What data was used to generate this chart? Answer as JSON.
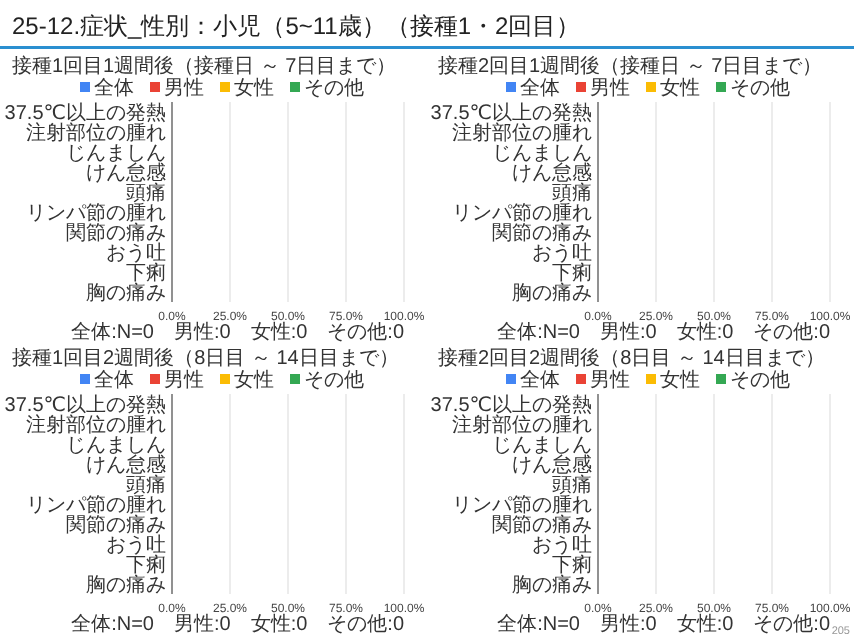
{
  "chart_data": [
    {
      "type": "bar",
      "orientation": "horizontal",
      "title": "接種1回目1週間後（接種日 ～ 7日目まで）",
      "categories": [
        "37.5℃以上の発熱",
        "注射部位の腫れ",
        "じんましん",
        "けん怠感",
        "頭痛",
        "リンパ節の腫れ",
        "関節の痛み",
        "おう吐",
        "下痢",
        "胸の痛み"
      ],
      "series": [
        {
          "name": "全体",
          "color": "#4285f4",
          "values": [
            0,
            0,
            0,
            0,
            0,
            0,
            0,
            0,
            0,
            0
          ]
        },
        {
          "name": "男性",
          "color": "#ea4335",
          "values": [
            0,
            0,
            0,
            0,
            0,
            0,
            0,
            0,
            0,
            0
          ]
        },
        {
          "name": "女性",
          "color": "#fbbc04",
          "values": [
            0,
            0,
            0,
            0,
            0,
            0,
            0,
            0,
            0,
            0
          ]
        },
        {
          "name": "その他",
          "color": "#34a853",
          "values": [
            0,
            0,
            0,
            0,
            0,
            0,
            0,
            0,
            0,
            0
          ]
        }
      ],
      "xlim": [
        0,
        100
      ],
      "xticks": [
        {
          "value": 0,
          "label": "0.0%"
        },
        {
          "value": 25,
          "label": "25.0%"
        },
        {
          "value": 50,
          "label": "50.0%"
        },
        {
          "value": 75,
          "label": "75.0%"
        },
        {
          "value": 100,
          "label": "100.0%"
        }
      ],
      "grid": "x",
      "legend": "top",
      "annotations": [
        "25-12.症状_性別：小児（5~11歳）（接種1・2回目）",
        "全体:N=0　男性:0　女性:0　その他:0"
      ]
    },
    {
      "type": "bar",
      "orientation": "horizontal",
      "title": "接種2回目1週間後（接種日 ～ 7日目まで）",
      "categories": [
        "37.5℃以上の発熱",
        "注射部位の腫れ",
        "じんましん",
        "けん怠感",
        "頭痛",
        "リンパ節の腫れ",
        "関節の痛み",
        "おう吐",
        "下痢",
        "胸の痛み"
      ],
      "series": [
        {
          "name": "全体",
          "color": "#4285f4",
          "values": [
            0,
            0,
            0,
            0,
            0,
            0,
            0,
            0,
            0,
            0
          ]
        },
        {
          "name": "男性",
          "color": "#ea4335",
          "values": [
            0,
            0,
            0,
            0,
            0,
            0,
            0,
            0,
            0,
            0
          ]
        },
        {
          "name": "女性",
          "color": "#fbbc04",
          "values": [
            0,
            0,
            0,
            0,
            0,
            0,
            0,
            0,
            0,
            0
          ]
        },
        {
          "name": "その他",
          "color": "#34a853",
          "values": [
            0,
            0,
            0,
            0,
            0,
            0,
            0,
            0,
            0,
            0
          ]
        }
      ],
      "xlim": [
        0,
        100
      ],
      "xticks": [
        {
          "value": 0,
          "label": "0.0%"
        },
        {
          "value": 25,
          "label": "25.0%"
        },
        {
          "value": 50,
          "label": "50.0%"
        },
        {
          "value": 75,
          "label": "75.0%"
        },
        {
          "value": 100,
          "label": "100.0%"
        }
      ],
      "grid": "x",
      "legend": "top",
      "annotations": [
        "全体:N=0　男性:0　女性:0　その他:0"
      ]
    },
    {
      "type": "bar",
      "orientation": "horizontal",
      "title": "接種1回目2週間後（8日目 ～ 14日目まで）",
      "categories": [
        "37.5℃以上の発熱",
        "注射部位の腫れ",
        "じんましん",
        "けん怠感",
        "頭痛",
        "リンパ節の腫れ",
        "関節の痛み",
        "おう吐",
        "下痢",
        "胸の痛み"
      ],
      "series": [
        {
          "name": "全体",
          "color": "#4285f4",
          "values": [
            0,
            0,
            0,
            0,
            0,
            0,
            0,
            0,
            0,
            0
          ]
        },
        {
          "name": "男性",
          "color": "#ea4335",
          "values": [
            0,
            0,
            0,
            0,
            0,
            0,
            0,
            0,
            0,
            0
          ]
        },
        {
          "name": "女性",
          "color": "#fbbc04",
          "values": [
            0,
            0,
            0,
            0,
            0,
            0,
            0,
            0,
            0,
            0
          ]
        },
        {
          "name": "その他",
          "color": "#34a853",
          "values": [
            0,
            0,
            0,
            0,
            0,
            0,
            0,
            0,
            0,
            0
          ]
        }
      ],
      "xlim": [
        0,
        100
      ],
      "xticks": [
        {
          "value": 0,
          "label": "0.0%"
        },
        {
          "value": 25,
          "label": "25.0%"
        },
        {
          "value": 50,
          "label": "50.0%"
        },
        {
          "value": 75,
          "label": "75.0%"
        },
        {
          "value": 100,
          "label": "100.0%"
        }
      ],
      "grid": "x",
      "legend": "top",
      "annotations": [
        "全体:N=0　男性:0　女性:0　その他:0"
      ]
    },
    {
      "type": "bar",
      "orientation": "horizontal",
      "title": "接種2回目2週間後（8日目 ～ 14日目まで）",
      "categories": [
        "37.5℃以上の発熱",
        "注射部位の腫れ",
        "じんましん",
        "けん怠感",
        "頭痛",
        "リンパ節の腫れ",
        "関節の痛み",
        "おう吐",
        "下痢",
        "胸の痛み"
      ],
      "series": [
        {
          "name": "全体",
          "color": "#4285f4",
          "values": [
            0,
            0,
            0,
            0,
            0,
            0,
            0,
            0,
            0,
            0
          ]
        },
        {
          "name": "男性",
          "color": "#ea4335",
          "values": [
            0,
            0,
            0,
            0,
            0,
            0,
            0,
            0,
            0,
            0
          ]
        },
        {
          "name": "女性",
          "color": "#fbbc04",
          "values": [
            0,
            0,
            0,
            0,
            0,
            0,
            0,
            0,
            0,
            0
          ]
        },
        {
          "name": "その他",
          "color": "#34a853",
          "values": [
            0,
            0,
            0,
            0,
            0,
            0,
            0,
            0,
            0,
            0
          ]
        }
      ],
      "xlim": [
        0,
        100
      ],
      "xticks": [
        {
          "value": 0,
          "label": "0.0%"
        },
        {
          "value": 25,
          "label": "25.0%"
        },
        {
          "value": 50,
          "label": "50.0%"
        },
        {
          "value": 75,
          "label": "75.0%"
        },
        {
          "value": 100,
          "label": "100.0%"
        }
      ],
      "grid": "x",
      "legend": "top",
      "annotations": [
        "全体:N=0　男性:0　女性:0　その他:0",
        "205"
      ]
    }
  ]
}
